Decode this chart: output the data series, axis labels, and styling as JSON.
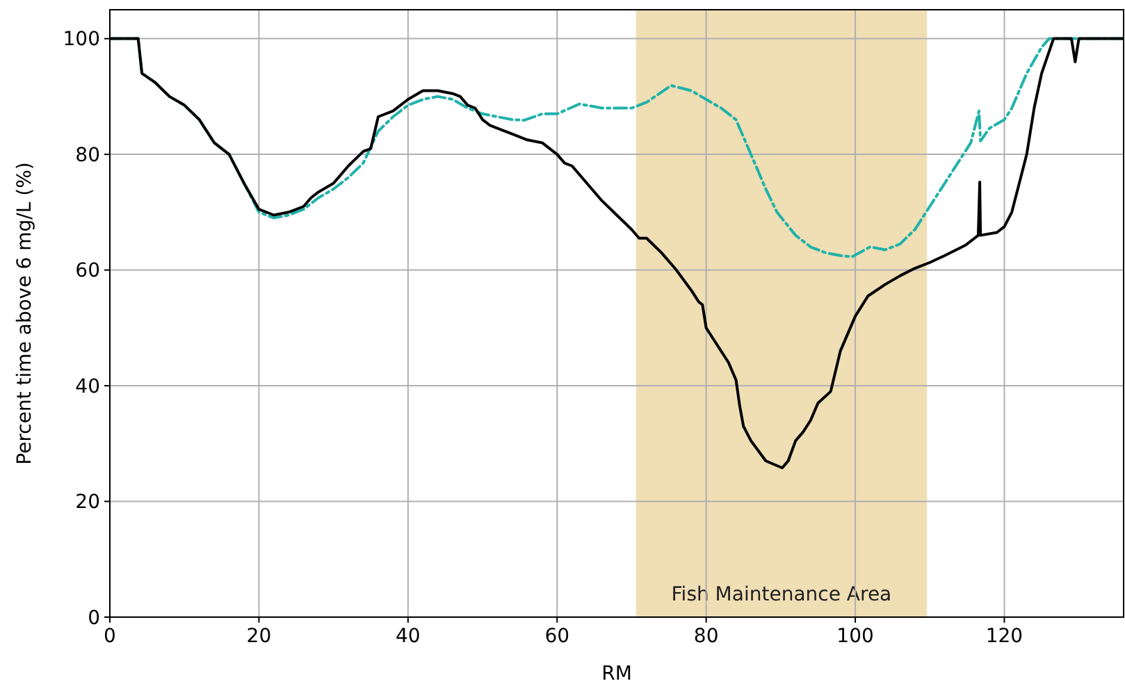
{
  "chart_data": {
    "type": "line",
    "xlabel": "RM",
    "ylabel": "Percent time above 6 mg/L (%)",
    "xlim": [
      0,
      136
    ],
    "ylim": [
      0,
      105
    ],
    "xticks": [
      0,
      20,
      40,
      60,
      80,
      100,
      120
    ],
    "yticks": [
      0,
      20,
      40,
      60,
      80,
      100
    ],
    "grid": true,
    "bands": [
      {
        "axis": "x",
        "from": 70.6,
        "to": 109.6,
        "label": "Fish Maintenance Area",
        "color": "#f0deb4"
      }
    ],
    "series": [
      {
        "color": "#20b2aa",
        "line_style": "dashed",
        "x": [
          0,
          3.8,
          4.3,
          6,
          8,
          10,
          12,
          14,
          16,
          18,
          20,
          22,
          24,
          26,
          28,
          30,
          32,
          34,
          36,
          38,
          40,
          42,
          44,
          46,
          48,
          50,
          52,
          54,
          55.6,
          58,
          60,
          63,
          66,
          70,
          72,
          75.3,
          78,
          80,
          82,
          84,
          86,
          88,
          89.5,
          92,
          94,
          96,
          98,
          99.6,
          102,
          104,
          106,
          108,
          110,
          112,
          114,
          115.5,
          116.6,
          116.8,
          118,
          120,
          121,
          123,
          125,
          126,
          136
        ],
        "values": [
          100,
          100,
          94,
          92.5,
          90,
          88.5,
          86,
          82,
          80,
          75,
          70,
          69,
          69.5,
          70.5,
          72.5,
          74,
          76,
          78.5,
          84,
          86.5,
          88.5,
          89.5,
          90,
          89.5,
          88,
          87,
          86.5,
          86,
          85.9,
          87,
          87,
          88.7,
          88,
          88,
          89,
          91.9,
          91,
          89.5,
          88,
          86,
          80,
          74,
          70,
          66,
          64,
          63,
          62.5,
          62.3,
          64,
          63.5,
          64.5,
          67,
          71,
          75,
          79,
          82,
          87.5,
          82.3,
          84.5,
          86,
          88,
          94,
          98.5,
          100,
          100
        ]
      },
      {
        "color": "#000000",
        "line_style": "solid",
        "x": [
          0,
          3.8,
          4.3,
          6,
          8,
          10,
          12,
          14,
          16,
          18,
          20,
          22,
          24,
          26,
          27,
          28,
          30,
          32,
          34,
          35,
          36,
          38,
          40,
          42,
          44,
          46,
          47,
          48,
          49,
          50,
          51,
          52,
          54,
          56,
          58,
          60,
          61,
          62,
          64,
          66,
          68,
          70,
          71,
          72,
          74,
          76,
          78,
          79,
          79.5,
          80,
          81,
          82,
          83,
          84,
          84.5,
          85,
          86,
          88,
          90.2,
          91,
          92,
          93,
          94,
          95,
          96.7,
          98,
          100,
          101.7,
          104,
          106,
          108,
          110,
          112,
          114.8,
          116.5,
          116.7,
          116.8,
          119,
          120,
          121,
          122,
          123,
          124,
          125,
          126.6,
          129,
          129.5,
          130,
          136
        ],
        "values": [
          100,
          100,
          94,
          92.5,
          90,
          88.5,
          86,
          82,
          80,
          75,
          70.5,
          69.5,
          70,
          71,
          72.5,
          73.5,
          75,
          78,
          80.5,
          81,
          86.5,
          87.5,
          89.5,
          91,
          91,
          90.5,
          90,
          88.5,
          88,
          86,
          85,
          84.5,
          83.5,
          82.5,
          82,
          80,
          78.5,
          78,
          75,
          72,
          69.5,
          67,
          65.5,
          65.5,
          63,
          60,
          56.5,
          54.5,
          54,
          50,
          48,
          46,
          44,
          41,
          36.5,
          33,
          30.5,
          27,
          25.8,
          27,
          30.5,
          32,
          34,
          37,
          39,
          46,
          52,
          55.5,
          57.5,
          59,
          60.3,
          61.3,
          62.5,
          64.3,
          66,
          75.2,
          66,
          66.5,
          67.5,
          70,
          75,
          80,
          88,
          94,
          100,
          100,
          96,
          100,
          100
        ]
      }
    ]
  }
}
